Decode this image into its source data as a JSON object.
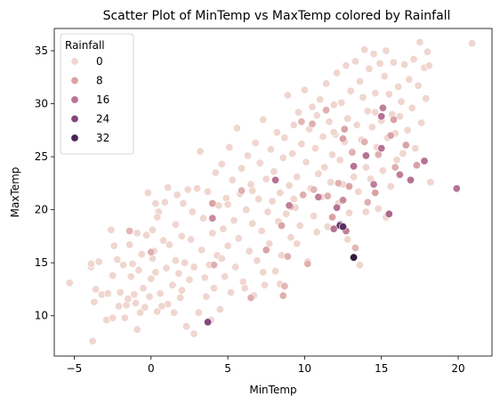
{
  "chart_data": {
    "type": "scatter",
    "title": "Scatter Plot of MinTemp vs MaxTemp colored by Rainfall",
    "xlabel": "MinTemp",
    "ylabel": "MaxTemp",
    "xlim": [
      -6.3,
      22.2
    ],
    "ylim": [
      6.2,
      37.1
    ],
    "xticks": [
      -5,
      0,
      5,
      10,
      15,
      20
    ],
    "yticks": [
      10,
      15,
      20,
      25,
      30,
      35
    ],
    "grid": false,
    "legend": {
      "title": "Rainfall",
      "placement": "top-left",
      "entries": [
        {
          "label": "0",
          "value": 0
        },
        {
          "label": "8",
          "value": 8
        },
        {
          "label": "16",
          "value": 16
        },
        {
          "label": "24",
          "value": 24
        },
        {
          "label": "32",
          "value": 32
        }
      ]
    },
    "color_scale": {
      "min": 0,
      "max": 40,
      "colors": [
        "#f0d6cf",
        "#d9a3a5",
        "#b67392",
        "#86477d",
        "#4c2556",
        "#2a1338"
      ]
    },
    "points": [
      [
        -5.3,
        13.1,
        0
      ],
      [
        -3.8,
        7.6,
        0
      ],
      [
        -3.9,
        14.6,
        0
      ],
      [
        -3.9,
        14.9,
        0
      ],
      [
        -3.7,
        11.3,
        0
      ],
      [
        -3.6,
        12.5,
        0
      ],
      [
        -3.4,
        15.1,
        0
      ],
      [
        -3.2,
        12.0,
        0
      ],
      [
        -2.9,
        9.6,
        0
      ],
      [
        -2.8,
        12.1,
        0
      ],
      [
        -2.6,
        18.1,
        0
      ],
      [
        -2.5,
        9.8,
        0
      ],
      [
        -2.4,
        16.6,
        0
      ],
      [
        -2.5,
        13.8,
        0
      ],
      [
        -2.2,
        15.3,
        0
      ],
      [
        -2.1,
        10.9,
        0
      ],
      [
        -2.0,
        12.2,
        0
      ],
      [
        -1.8,
        14.8,
        0
      ],
      [
        -1.7,
        9.8,
        0
      ],
      [
        -1.6,
        11.0,
        0
      ],
      [
        -1.5,
        11.6,
        0
      ],
      [
        -1.4,
        16.7,
        0
      ],
      [
        -1.3,
        13.7,
        0
      ],
      [
        -1.2,
        14.9,
        0
      ],
      [
        -1.1,
        12.0,
        0
      ],
      [
        -1.0,
        11.2,
        0
      ],
      [
        -0.9,
        8.7,
        0
      ],
      [
        -0.8,
        14.3,
        0
      ],
      [
        -0.7,
        10.3,
        0
      ],
      [
        -0.6,
        15.8,
        0
      ],
      [
        -0.5,
        12.6,
        0
      ],
      [
        -0.4,
        10.8,
        0
      ],
      [
        -0.3,
        17.6,
        0
      ],
      [
        -0.2,
        21.6,
        0
      ],
      [
        -0.1,
        11.8,
        0
      ],
      [
        0.0,
        13.5,
        0
      ],
      [
        0.1,
        18.1,
        0
      ],
      [
        0.1,
        15.4,
        0
      ],
      [
        0.2,
        16.1,
        0
      ],
      [
        0.3,
        14.1,
        0
      ],
      [
        0.3,
        20.6,
        0
      ],
      [
        0.4,
        10.4,
        0
      ],
      [
        0.5,
        19.8,
        0
      ],
      [
        0.6,
        12.1,
        0
      ],
      [
        0.8,
        17.1,
        0
      ],
      [
        0.9,
        20.7,
        0
      ],
      [
        1.0,
        14.5,
        0
      ],
      [
        1.1,
        11.1,
        0
      ],
      [
        1.1,
        22.1,
        0
      ],
      [
        1.2,
        16.7,
        0
      ],
      [
        1.4,
        12.9,
        0
      ],
      [
        1.5,
        10.3,
        0
      ],
      [
        1.6,
        18.6,
        0
      ],
      [
        1.7,
        21.4,
        0
      ],
      [
        1.8,
        14.0,
        0
      ],
      [
        1.9,
        11.7,
        0
      ],
      [
        2.0,
        17.5,
        0
      ],
      [
        2.1,
        20.6,
        0
      ],
      [
        2.2,
        15.0,
        0
      ],
      [
        2.3,
        9.0,
        0
      ],
      [
        2.4,
        21.9,
        0
      ],
      [
        2.5,
        13.4,
        0
      ],
      [
        2.6,
        17.2,
        0
      ],
      [
        2.8,
        8.3,
        0
      ],
      [
        2.8,
        14.6,
        0
      ],
      [
        3.0,
        22.0,
        0
      ],
      [
        3.1,
        10.3,
        0
      ],
      [
        3.2,
        25.5,
        0
      ],
      [
        3.3,
        16.2,
        0
      ],
      [
        3.4,
        19.2,
        0
      ],
      [
        3.5,
        13.6,
        0
      ],
      [
        3.6,
        11.8,
        0
      ],
      [
        3.7,
        21.7,
        0
      ],
      [
        3.8,
        14.8,
        0
      ],
      [
        4.0,
        17.8,
        0
      ],
      [
        4.1,
        12.6,
        0
      ],
      [
        4.2,
        23.5,
        0
      ],
      [
        4.3,
        15.7,
        0
      ],
      [
        4.4,
        20.4,
        0
      ],
      [
        4.5,
        10.6,
        0
      ],
      [
        4.6,
        24.3,
        0
      ],
      [
        4.7,
        18.2,
        0
      ],
      [
        4.8,
        13.7,
        0
      ],
      [
        4.9,
        21.1,
        0
      ],
      [
        5.0,
        16.6,
        0
      ],
      [
        5.1,
        25.9,
        0
      ],
      [
        5.2,
        12.2,
        0
      ],
      [
        5.3,
        22.8,
        0
      ],
      [
        5.4,
        19.0,
        0
      ],
      [
        5.5,
        14.6,
        0
      ],
      [
        5.6,
        27.7,
        0
      ],
      [
        5.7,
        17.3,
        0
      ],
      [
        5.8,
        21.5,
        0
      ],
      [
        5.9,
        23.9,
        0
      ],
      [
        6.0,
        13.2,
        0
      ],
      [
        6.2,
        20.0,
        0
      ],
      [
        6.3,
        25.1,
        0
      ],
      [
        6.4,
        16.1,
        0
      ],
      [
        6.5,
        22.4,
        0
      ],
      [
        6.6,
        18.7,
        0
      ],
      [
        6.7,
        11.9,
        0
      ],
      [
        6.8,
        26.3,
        0
      ],
      [
        6.9,
        15.2,
        0
      ],
      [
        7.0,
        21.0,
        0
      ],
      [
        7.1,
        24.4,
        0
      ],
      [
        7.2,
        18.0,
        0
      ],
      [
        7.3,
        28.5,
        0
      ],
      [
        7.4,
        12.9,
        0
      ],
      [
        7.5,
        22.9,
        0
      ],
      [
        7.6,
        19.8,
        0
      ],
      [
        7.7,
        16.8,
        0
      ],
      [
        7.8,
        25.7,
        0
      ],
      [
        7.9,
        20.8,
        0
      ],
      [
        8.0,
        23.6,
        0
      ],
      [
        8.1,
        14.2,
        0
      ],
      [
        8.2,
        27.3,
        0
      ],
      [
        8.3,
        18.9,
        0
      ],
      [
        8.4,
        21.6,
        0
      ],
      [
        8.5,
        15.7,
        0
      ],
      [
        8.6,
        24.9,
        0
      ],
      [
        8.7,
        26.8,
        0
      ],
      [
        8.8,
        19.6,
        0
      ],
      [
        8.9,
        30.8,
        0
      ],
      [
        9.0,
        22.3,
        0
      ],
      [
        9.1,
        17.4,
        0
      ],
      [
        9.2,
        25.3,
        0
      ],
      [
        9.3,
        28.0,
        0
      ],
      [
        9.4,
        20.2,
        0
      ],
      [
        9.5,
        23.1,
        0
      ],
      [
        9.6,
        29.2,
        0
      ],
      [
        9.7,
        18.5,
        0
      ],
      [
        9.8,
        26.2,
        0
      ],
      [
        9.9,
        21.4,
        0
      ],
      [
        10.0,
        31.3,
        0
      ],
      [
        10.1,
        24.5,
        0
      ],
      [
        10.2,
        15.1,
        0
      ],
      [
        10.3,
        27.6,
        0
      ],
      [
        10.4,
        22.0,
        0
      ],
      [
        10.5,
        29.7,
        0
      ],
      [
        10.6,
        19.4,
        0
      ],
      [
        10.7,
        25.8,
        0
      ],
      [
        10.8,
        28.9,
        0
      ],
      [
        10.9,
        23.4,
        0
      ],
      [
        11.0,
        30.4,
        0
      ],
      [
        11.1,
        21.2,
        0
      ],
      [
        11.2,
        26.9,
        0
      ],
      [
        11.3,
        24.0,
        0
      ],
      [
        11.4,
        31.9,
        0
      ],
      [
        11.5,
        18.4,
        0
      ],
      [
        11.6,
        28.3,
        0
      ],
      [
        11.7,
        22.6,
        0
      ],
      [
        11.8,
        25.2,
        0
      ],
      [
        11.9,
        29.9,
        0
      ],
      [
        12.0,
        27.1,
        0
      ],
      [
        12.1,
        32.9,
        0
      ],
      [
        12.2,
        20.6,
        0
      ],
      [
        12.3,
        24.7,
        0
      ],
      [
        12.4,
        30.1,
        0
      ],
      [
        12.5,
        22.4,
        0
      ],
      [
        12.6,
        26.4,
        0
      ],
      [
        12.7,
        33.6,
        0
      ],
      [
        12.8,
        28.6,
        0
      ],
      [
        12.9,
        19.7,
        0
      ],
      [
        13.0,
        31.2,
        0
      ],
      [
        13.1,
        25.5,
        0
      ],
      [
        13.2,
        23.1,
        0
      ],
      [
        13.3,
        34.0,
        0
      ],
      [
        13.4,
        28.0,
        0
      ],
      [
        13.5,
        21.7,
        0
      ],
      [
        13.6,
        32.1,
        0
      ],
      [
        13.7,
        26.6,
        0
      ],
      [
        13.8,
        30.6,
        0
      ],
      [
        13.9,
        35.1,
        0
      ],
      [
        14.0,
        24.0,
        0
      ],
      [
        14.1,
        29.3,
        0
      ],
      [
        14.2,
        33.3,
        0
      ],
      [
        14.3,
        22.9,
        0
      ],
      [
        14.4,
        27.8,
        0
      ],
      [
        14.5,
        34.7,
        0
      ],
      [
        14.6,
        31.0,
        0
      ],
      [
        14.7,
        25.9,
        0
      ],
      [
        14.8,
        20.1,
        0
      ],
      [
        14.9,
        33.8,
        0
      ],
      [
        15.0,
        28.4,
        0
      ],
      [
        15.1,
        23.7,
        0
      ],
      [
        15.2,
        32.6,
        0
      ],
      [
        15.3,
        35.0,
        0
      ],
      [
        15.4,
        26.8,
        0
      ],
      [
        15.5,
        30.9,
        0
      ],
      [
        15.6,
        22.2,
        0
      ],
      [
        15.7,
        29.0,
        0
      ],
      [
        15.8,
        33.9,
        0
      ],
      [
        15.9,
        27.2,
        0
      ],
      [
        16.0,
        24.7,
        0
      ],
      [
        16.1,
        31.6,
        0
      ],
      [
        16.2,
        28.8,
        0
      ],
      [
        16.3,
        30.2,
        0
      ],
      [
        16.4,
        25.3,
        0
      ],
      [
        16.5,
        33.7,
        0
      ],
      [
        16.7,
        27.5,
        0
      ],
      [
        16.8,
        32.3,
        0
      ],
      [
        17.0,
        29.6,
        0
      ],
      [
        17.1,
        34.2,
        0
      ],
      [
        17.2,
        25.8,
        0
      ],
      [
        17.4,
        31.7,
        0
      ],
      [
        17.5,
        35.8,
        0
      ],
      [
        17.6,
        28.2,
        0
      ],
      [
        17.8,
        33.4,
        0
      ],
      [
        18.0,
        34.9,
        0
      ],
      [
        18.2,
        22.6,
        0
      ],
      [
        20.9,
        35.7,
        0
      ],
      [
        18.1,
        33.6,
        0
      ],
      [
        17.9,
        30.5,
        0
      ],
      [
        14.6,
        29.2,
        0
      ],
      [
        11.9,
        27.3,
        0
      ],
      [
        1.6,
        15.2,
        0
      ],
      [
        0.7,
        10.9,
        0
      ],
      [
        -0.9,
        17.8,
        0
      ],
      [
        2.7,
        19.8,
        0
      ],
      [
        5.0,
        20.5,
        0
      ],
      [
        6.1,
        12.6,
        0
      ],
      [
        7.3,
        14.1,
        0
      ],
      [
        9.5,
        16.8,
        0
      ],
      [
        10.8,
        17.9,
        0
      ],
      [
        12.8,
        17.2,
        0
      ],
      [
        14.0,
        19.8,
        0
      ],
      [
        13.6,
        14.8,
        0
      ],
      [
        15.3,
        19.3,
        0
      ],
      [
        3.9,
        9.6,
        0
      ],
      [
        4.6,
        15.4,
        0
      ],
      [
        6.6,
        21.8,
        0
      ],
      [
        8.4,
        13.0,
        0
      ],
      [
        9.3,
        21.0,
        0
      ],
      [
        2.0,
        12.4,
        0
      ],
      [
        0.4,
        19.3,
        0
      ],
      [
        0.0,
        16.0,
        6
      ],
      [
        -1.4,
        18.0,
        5
      ],
      [
        4.1,
        14.8,
        6
      ],
      [
        4.0,
        20.6,
        8
      ],
      [
        5.9,
        21.8,
        6
      ],
      [
        6.5,
        11.7,
        6
      ],
      [
        7.5,
        16.2,
        8
      ],
      [
        8.5,
        18.5,
        8
      ],
      [
        8.7,
        12.8,
        5
      ],
      [
        8.6,
        11.9,
        6
      ],
      [
        8.9,
        15.6,
        6
      ],
      [
        9.1,
        20.3,
        8
      ],
      [
        9.9,
        21.4,
        6
      ],
      [
        10.2,
        14.9,
        6
      ],
      [
        10.6,
        21.9,
        5
      ],
      [
        11.5,
        21.3,
        6
      ],
      [
        11.8,
        19.3,
        8
      ],
      [
        12.2,
        22.5,
        6
      ],
      [
        12.6,
        27.6,
        8
      ],
      [
        12.9,
        22.2,
        8
      ],
      [
        13.1,
        25.4,
        6
      ],
      [
        13.3,
        16.4,
        5
      ],
      [
        14.1,
        20.7,
        6
      ],
      [
        14.6,
        21.6,
        8
      ],
      [
        14.8,
        25.2,
        6
      ],
      [
        15.6,
        27.0,
        8
      ],
      [
        15.9,
        24.0,
        6
      ],
      [
        16.6,
        26.1,
        8
      ],
      [
        17.3,
        24.2,
        8
      ],
      [
        15.8,
        28.5,
        8
      ],
      [
        13.9,
        26.4,
        6
      ],
      [
        12.5,
        26.7,
        8
      ],
      [
        11.4,
        29.4,
        6
      ],
      [
        10.5,
        28.1,
        6
      ],
      [
        9.8,
        28.3,
        5
      ],
      [
        8.1,
        22.8,
        16
      ],
      [
        9.0,
        20.4,
        14
      ],
      [
        11.9,
        18.2,
        16
      ],
      [
        12.1,
        20.2,
        16
      ],
      [
        12.3,
        18.6,
        18
      ],
      [
        12.5,
        20.9,
        12
      ],
      [
        13.2,
        24.1,
        16
      ],
      [
        14.0,
        25.1,
        16
      ],
      [
        15.0,
        25.8,
        16
      ],
      [
        15.5,
        19.6,
        18
      ],
      [
        16.2,
        23.3,
        14
      ],
      [
        16.9,
        22.8,
        16
      ],
      [
        17.8,
        24.6,
        16
      ],
      [
        19.9,
        22.0,
        16
      ],
      [
        15.1,
        29.6,
        14
      ],
      [
        15.0,
        28.8,
        16
      ],
      [
        14.5,
        22.4,
        14
      ],
      [
        12.7,
        18.0,
        14
      ],
      [
        4.0,
        19.2,
        12
      ],
      [
        3.7,
        9.4,
        24
      ],
      [
        10.9,
        21.2,
        14
      ],
      [
        12.3,
        18.5,
        28
      ],
      [
        12.5,
        18.4,
        30
      ],
      [
        13.2,
        15.5,
        38
      ]
    ]
  }
}
